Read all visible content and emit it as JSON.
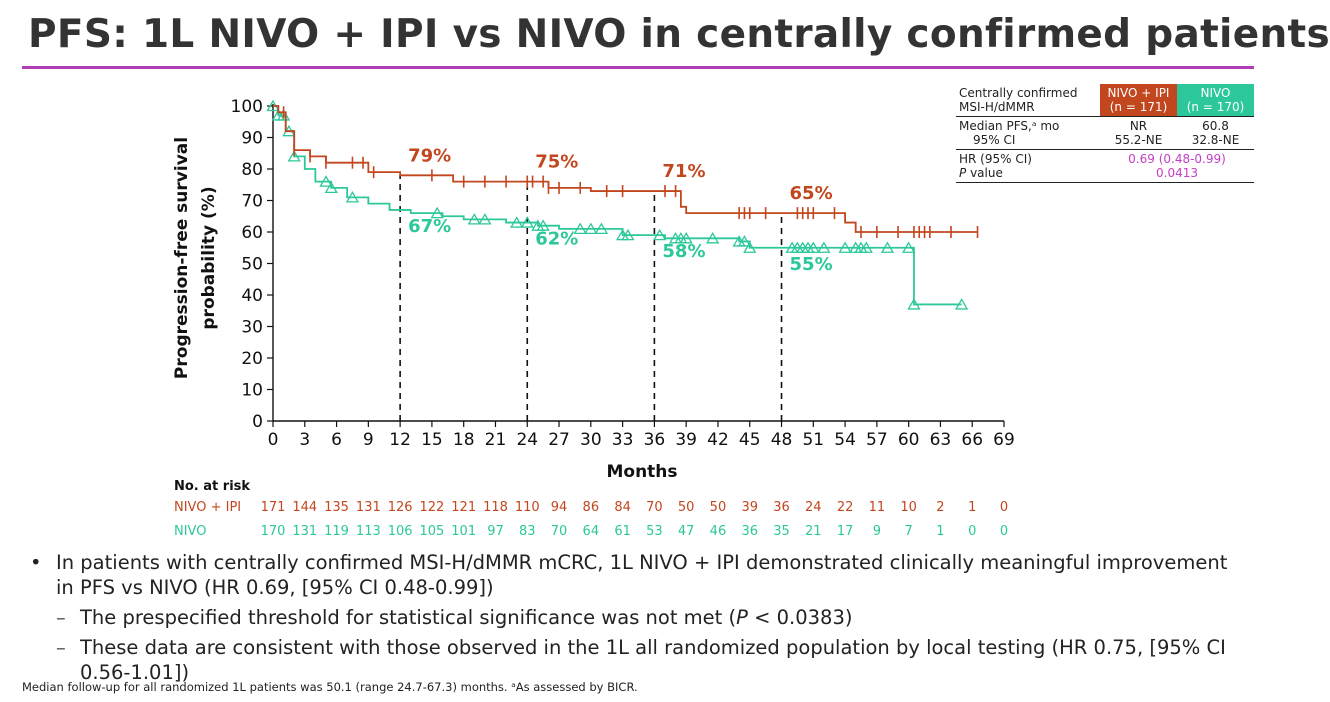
{
  "title": "PFS: 1L NIVO + IPI vs NIVO in centrally confirmed patients",
  "colors": {
    "nivo_ipi": "#c2471e",
    "nivo": "#2cc79a",
    "accent": "#b13db5",
    "hr_text": "#c23fc6"
  },
  "summary_table": {
    "header_label_1": "Centrally confirmed",
    "header_label_2": "MSI-H/dMMR",
    "col1_name": "NIVO + IPI",
    "col1_n": "(n = 171)",
    "col2_name": "NIVO",
    "col2_n": "(n = 170)",
    "median_label": "Median PFS,ᵃ mo",
    "ci_label": "95% CI",
    "col1_median": "NR",
    "col1_ci": "55.2-NE",
    "col2_median": "60.8",
    "col2_ci": "32.8-NE",
    "hr_label": "HR (95% CI)",
    "p_label_italic": "P",
    "p_label_rest": " value",
    "hr_value": "0.69 (0.48-0.99)",
    "p_value": "0.0413"
  },
  "risk_table": {
    "header": "No. at risk",
    "rows": [
      {
        "label": "NIVO + IPI",
        "values": [
          "171",
          "144",
          "135",
          "131",
          "126",
          "122",
          "121",
          "118",
          "110",
          "94",
          "86",
          "84",
          "70",
          "50",
          "50",
          "39",
          "36",
          "24",
          "22",
          "11",
          "10",
          "2",
          "1",
          "0"
        ]
      },
      {
        "label": "NIVO",
        "values": [
          "170",
          "131",
          "119",
          "113",
          "106",
          "105",
          "101",
          "97",
          "83",
          "70",
          "64",
          "61",
          "53",
          "47",
          "46",
          "36",
          "35",
          "21",
          "17",
          "9",
          "7",
          "1",
          "0",
          "0"
        ]
      }
    ]
  },
  "bullets": {
    "main": "In patients with centrally confirmed MSI-H/dMMR mCRC, 1L NIVO + IPI demonstrated clinically meaningful improvement in PFS vs NIVO (HR 0.69, [95% CI 0.48-0.99])",
    "sub1_before": "The prespecified threshold for statistical significance was not met (",
    "sub1_italic": "P",
    "sub1_after": " < 0.0383)",
    "sub2": "These data are consistent with those observed in the 1L all randomized population by local testing (HR 0.75, [95% CI 0.56-1.01])"
  },
  "footnote": "Median follow-up for all randomized 1L patients was 50.1 (range 24.7-67.3) months. ᵃAs assessed by BICR.",
  "chart_data": {
    "type": "line",
    "xlabel": "Months",
    "ylabel_line1": "Progression-free survival",
    "ylabel_line2": "probability (%)",
    "xlim": [
      0,
      69
    ],
    "ylim": [
      0,
      100
    ],
    "xticks": [
      0,
      3,
      6,
      9,
      12,
      15,
      18,
      21,
      24,
      27,
      30,
      33,
      36,
      39,
      42,
      45,
      48,
      51,
      54,
      57,
      60,
      63,
      66,
      69
    ],
    "yticks": [
      0,
      10,
      20,
      30,
      40,
      50,
      60,
      70,
      80,
      90,
      100
    ],
    "landmarks": [
      12,
      24,
      36,
      48
    ],
    "series": [
      {
        "name": "NIVO + IPI",
        "step_x": [
          0,
          0.5,
          1.2,
          2,
          3.5,
          5,
          9,
          12,
          17,
          26,
          30,
          38.5,
          39,
          54,
          55
        ],
        "step_y": [
          100,
          98,
          92,
          86,
          84,
          82,
          79,
          78,
          76,
          74,
          73,
          68,
          66,
          63,
          60
        ],
        "end_x": 66.5,
        "censor_x": [
          1,
          2,
          3.5,
          5,
          7.5,
          8.5,
          9.5,
          15,
          18,
          20,
          22,
          24,
          24.5,
          25.5,
          26,
          27,
          29,
          31.5,
          33,
          37,
          38,
          44,
          44.5,
          45,
          46.5,
          49.5,
          50,
          50.5,
          51,
          53,
          55.5,
          57,
          59,
          60.5,
          61,
          61.5,
          62,
          64,
          66.5
        ],
        "landmark_labels": [
          "79%",
          "75%",
          "71%",
          "65%"
        ]
      },
      {
        "name": "NIVO",
        "step_x": [
          0,
          0.5,
          1.2,
          2,
          3,
          4,
          5.5,
          7,
          9,
          11,
          13,
          16,
          18,
          22,
          25,
          27,
          33,
          37,
          44,
          45,
          60.5,
          61
        ],
        "step_y": [
          100,
          97,
          92,
          84,
          80,
          76,
          74,
          71,
          69,
          67,
          66,
          65,
          64,
          63,
          62,
          61,
          59,
          58,
          57,
          55,
          37,
          37
        ],
        "end_x": 65,
        "censor_x": [
          0,
          0.5,
          1,
          1.5,
          2,
          5,
          5.5,
          7.5,
          15.5,
          19,
          20,
          23,
          24,
          25,
          25.5,
          29,
          30,
          31,
          33,
          33.5,
          36.5,
          38,
          38.5,
          39,
          41.5,
          44,
          44.5,
          45,
          49,
          49.5,
          50,
          50.5,
          51,
          52,
          54,
          55,
          55.5,
          56,
          58,
          60,
          60.5,
          65
        ],
        "landmark_labels": [
          "67%",
          "62%",
          "58%",
          "55%"
        ]
      }
    ]
  }
}
